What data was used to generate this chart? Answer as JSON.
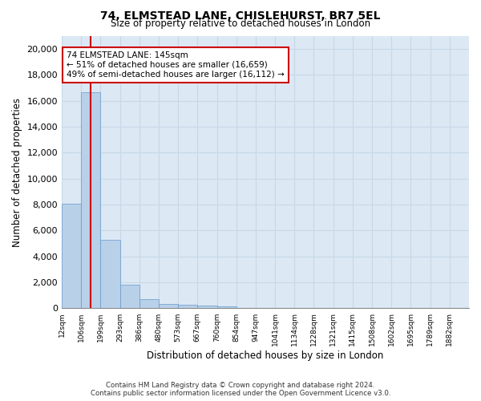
{
  "title_line1": "74, ELMSTEAD LANE, CHISLEHURST, BR7 5EL",
  "title_line2": "Size of property relative to detached houses in London",
  "xlabel": "Distribution of detached houses by size in London",
  "ylabel": "Number of detached properties",
  "annotation_line1": "74 ELMSTEAD LANE: 145sqm",
  "annotation_line2": "← 51% of detached houses are smaller (16,659)",
  "annotation_line3": "49% of semi-detached houses are larger (16,112) →",
  "footer_line1": "Contains HM Land Registry data © Crown copyright and database right 2024.",
  "footer_line2": "Contains public sector information licensed under the Open Government Licence v3.0.",
  "bar_color": "#b8d0e8",
  "bar_edge_color": "#6699cc",
  "vline_color": "#cc0000",
  "annotation_box_color": "#ffffff",
  "annotation_box_edge": "#cc0000",
  "grid_color": "#c8d8e8",
  "background_color": "#dce8f4",
  "bins": [
    "12sqm",
    "106sqm",
    "199sqm",
    "293sqm",
    "386sqm",
    "480sqm",
    "573sqm",
    "667sqm",
    "760sqm",
    "854sqm",
    "947sqm",
    "1041sqm",
    "1134sqm",
    "1228sqm",
    "1321sqm",
    "1415sqm",
    "1508sqm",
    "1602sqm",
    "1695sqm",
    "1789sqm",
    "1882sqm"
  ],
  "heights": [
    8100,
    16650,
    5300,
    1800,
    680,
    350,
    270,
    200,
    130,
    0,
    0,
    0,
    0,
    0,
    0,
    0,
    0,
    0,
    0,
    0,
    0
  ],
  "vline_position": 1.5,
  "ylim": [
    0,
    21000
  ],
  "yticks": [
    0,
    2000,
    4000,
    6000,
    8000,
    10000,
    12000,
    14000,
    16000,
    18000,
    20000
  ]
}
